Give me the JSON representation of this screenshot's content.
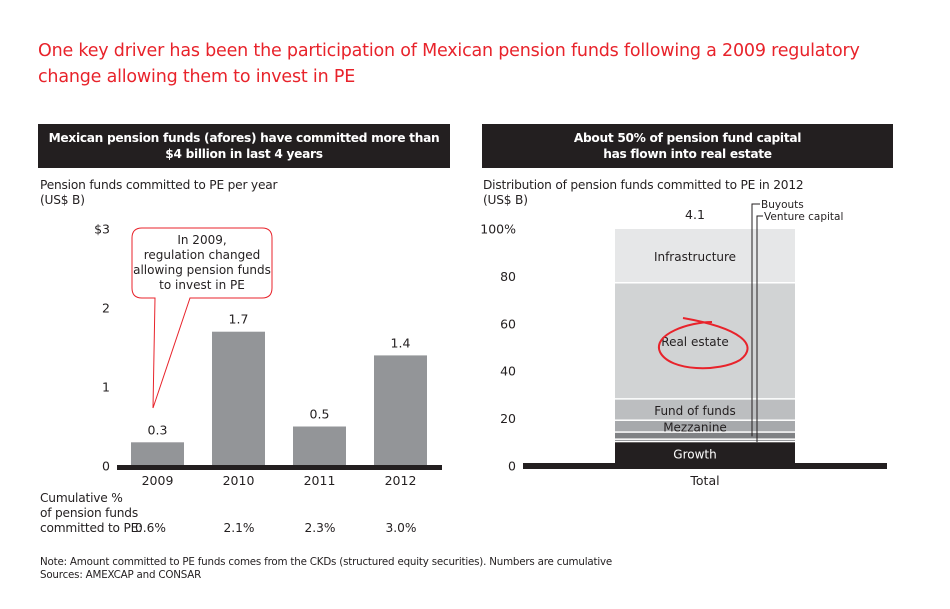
{
  "title": "One key driver has been the participation of Mexican pension funds following a 2009 regulatory change allowing them to invest in PE",
  "left_panel": {
    "header_line1": "Mexican pension funds (afores) have committed more than",
    "header_line2": "$4 billion in last 4 years",
    "subtitle_line1": "Pension funds committed to PE per year",
    "subtitle_line2": "(US$ B)",
    "callout_lines": [
      "In 2009,",
      "regulation changed",
      "allowing pension funds",
      "to invest in PE"
    ],
    "cumulative_label_lines": [
      "Cumulative %",
      "of pension funds",
      "committed to PE:"
    ],
    "cumulative_values": [
      "0.6%",
      "2.1%",
      "2.3%",
      "3.0%"
    ]
  },
  "right_panel": {
    "header_line1": "About 50% of pension fund capital",
    "header_line2": "has flown into real estate",
    "subtitle_line1": "Distribution of pension funds committed to PE in 2012",
    "subtitle_line2": "(US$ B)"
  },
  "footnote": {
    "note": "Note: Amount committed to PE funds comes from the CKDs (structured equity securities). Numbers are cumulative",
    "sources": "Sources: AMEXCAP and CONSAR"
  },
  "colors": {
    "accent_red": "#e8232b",
    "header_dark": "#231f20",
    "bar_grey": "#939598"
  },
  "chart_data": [
    {
      "type": "bar",
      "title": "Pension funds committed to PE per year",
      "ylabel": "US$ B",
      "xlabel": "",
      "categories": [
        "2009",
        "2010",
        "2011",
        "2012"
      ],
      "values": [
        0.3,
        1.7,
        0.5,
        1.4
      ],
      "data_labels": [
        "0.3",
        "1.7",
        "0.5",
        "1.4"
      ],
      "ylim": [
        0,
        3
      ],
      "yticks": [
        0,
        1,
        2,
        3
      ],
      "ytick_labels": [
        "0",
        "1",
        "2",
        "$3"
      ],
      "grid": false,
      "annotation": "In 2009, regulation changed allowing pension funds to invest in PE",
      "annotation_target": "2009"
    },
    {
      "type": "bar",
      "stacked": true,
      "title": "Distribution of pension funds committed to PE in 2012",
      "ylabel": "US$ B",
      "categories": [
        "Total"
      ],
      "total_label": "4.1",
      "ylim": [
        0,
        100
      ],
      "yticks": [
        0,
        20,
        40,
        60,
        80,
        100
      ],
      "ytick_labels": [
        "0",
        "20",
        "40",
        "60",
        "80",
        "100%"
      ],
      "grid": false,
      "series": [
        {
          "name": "Growth",
          "values": [
            10
          ],
          "color": "#231f20",
          "label_color": "#ffffff",
          "label_inside": true
        },
        {
          "name": "Venture capital",
          "values": [
            1
          ],
          "color": "#808285",
          "label_inside": false
        },
        {
          "name": "Buyouts",
          "values": [
            3
          ],
          "color": "#808285",
          "label_inside": false
        },
        {
          "name": "Mezzanine",
          "values": [
            5
          ],
          "color": "#a7a9ac",
          "label_inside": true
        },
        {
          "name": "Fund of funds",
          "values": [
            9
          ],
          "color": "#bcbec0",
          "label_inside": true
        },
        {
          "name": "Real estate",
          "values": [
            49
          ],
          "color": "#d1d3d4",
          "label_inside": true,
          "highlighted": true
        },
        {
          "name": "Infrastructure",
          "values": [
            23
          ],
          "color": "#e6e7e8",
          "label_inside": true
        }
      ]
    }
  ]
}
